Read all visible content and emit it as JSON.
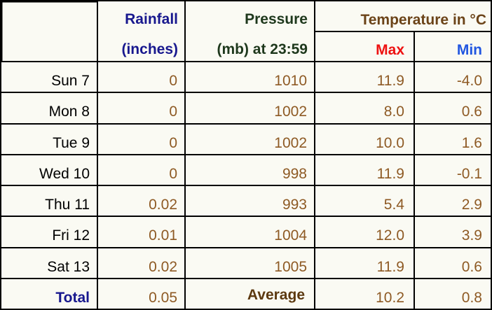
{
  "chart_data": {
    "type": "table",
    "column_headers": {
      "rainfall_line1": "Rainfall",
      "rainfall_line2": "(inches)",
      "pressure_line1": "Pressure",
      "pressure_line2": "(mb) at 23:59",
      "temperature_group": "Temperature in °C",
      "temperature_max": "Max",
      "temperature_min": "Min"
    },
    "rows": [
      {
        "day": "Sun 7",
        "rainfall": "0",
        "pressure": "1010",
        "max": "11.9",
        "min": "-4.0"
      },
      {
        "day": "Mon 8",
        "rainfall": "0",
        "pressure": "1002",
        "max": "8.0",
        "min": "0.6"
      },
      {
        "day": "Tue 9",
        "rainfall": "0",
        "pressure": "1002",
        "max": "10.0",
        "min": "1.6"
      },
      {
        "day": "Wed 10",
        "rainfall": "0",
        "pressure": "998",
        "max": "11.9",
        "min": "-0.1"
      },
      {
        "day": "Thu 11",
        "rainfall": "0.02",
        "pressure": "993",
        "max": "5.4",
        "min": "2.9"
      },
      {
        "day": "Fri 12",
        "rainfall": "0.01",
        "pressure": "1004",
        "max": "12.0",
        "min": "3.9"
      },
      {
        "day": "Sat 13",
        "rainfall": "0.02",
        "pressure": "1005",
        "max": "11.9",
        "min": "0.6"
      }
    ],
    "summary_row": {
      "label": "Total",
      "rainfall_total": "0.05",
      "pressure_cell_label": "Average",
      "temperature_max_average": "10.2",
      "temperature_min_average": "0.8"
    },
    "layout": {
      "grid": "on",
      "temperature_group_spans": [
        "Max",
        "Min"
      ]
    },
    "colors": {
      "background": "#FAFAF3",
      "grid": "#000000",
      "rainfall_header": "#18188E",
      "pressure_header": "#1E381C",
      "temperature_header": "#6B4318",
      "max_header": "#EE1111",
      "min_header": "#2156E0",
      "day_text": "#000000",
      "value_text": "#8E5A24",
      "total_text": "#18188E",
      "average_text": "#5C3910"
    }
  }
}
